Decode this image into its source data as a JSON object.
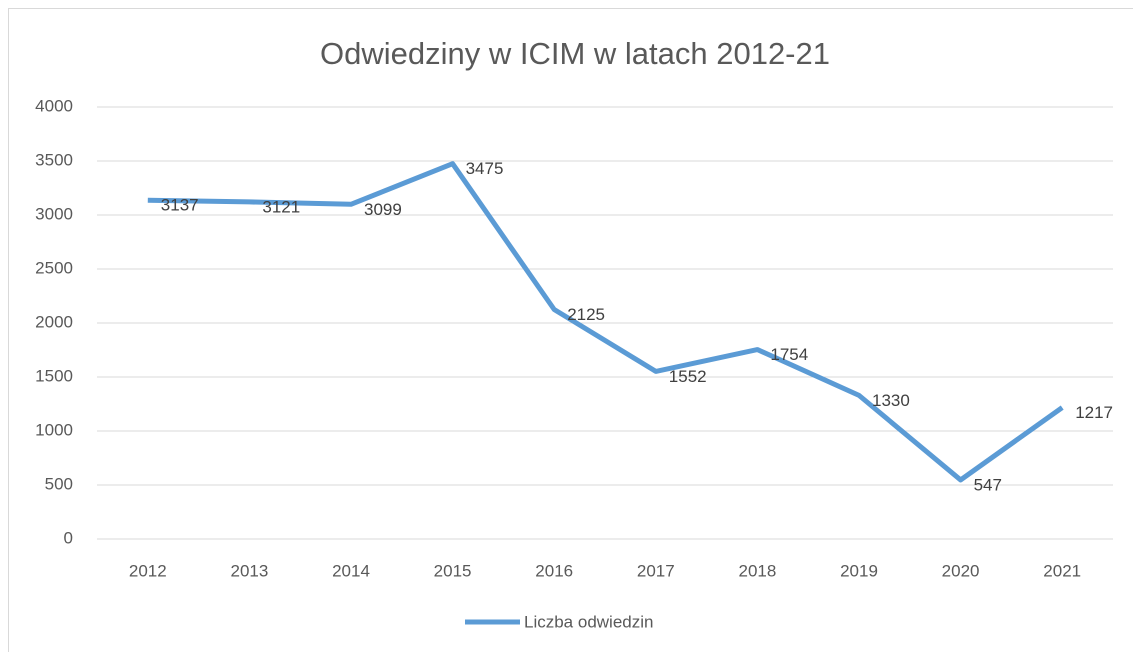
{
  "chart_data": {
    "type": "line",
    "title": "Odwiedziny w ICIM w latach 2012-21",
    "categories": [
      "2012",
      "2013",
      "2014",
      "2015",
      "2016",
      "2017",
      "2018",
      "2019",
      "2020",
      "2021"
    ],
    "series": [
      {
        "name": "Liczba odwiedzin",
        "color": "#5b9bd5",
        "values": [
          3137,
          3121,
          3099,
          3475,
          2125,
          1552,
          1754,
          1330,
          547,
          1217
        ]
      }
    ],
    "ylim": [
      0,
      4000
    ],
    "yticks": [
      0,
      500,
      1000,
      1500,
      2000,
      2500,
      3000,
      3500,
      4000
    ],
    "grid": true,
    "legend": "bottom",
    "data_labels": true
  }
}
